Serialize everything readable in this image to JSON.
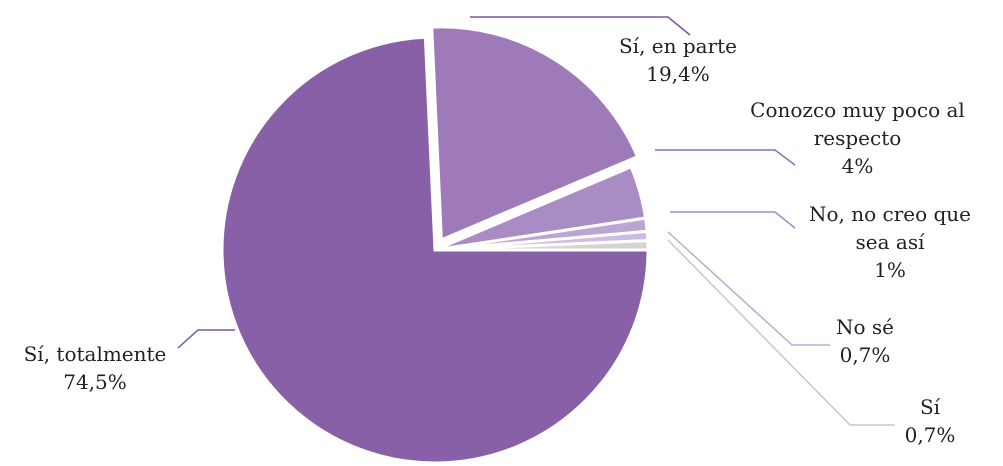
{
  "chart_data": {
    "type": "pie",
    "categories": [
      "Sí, totalmente",
      "Sí, en parte",
      "Conozco muy poco al respecto",
      "No, no creo que sea así",
      "No sé",
      "Sí"
    ],
    "values": [
      74.5,
      19.4,
      4,
      1,
      0.7,
      0.7
    ],
    "value_labels": [
      "74,5%",
      "19,4%",
      "4%",
      "1%",
      "0,7%",
      "0,7%"
    ],
    "colors": [
      "#8760a8",
      "#9e7ab8",
      "#a98cc4",
      "#bba5d3",
      "#cbbde0",
      "#d4d4d4"
    ],
    "exploded": [
      1
    ]
  }
}
